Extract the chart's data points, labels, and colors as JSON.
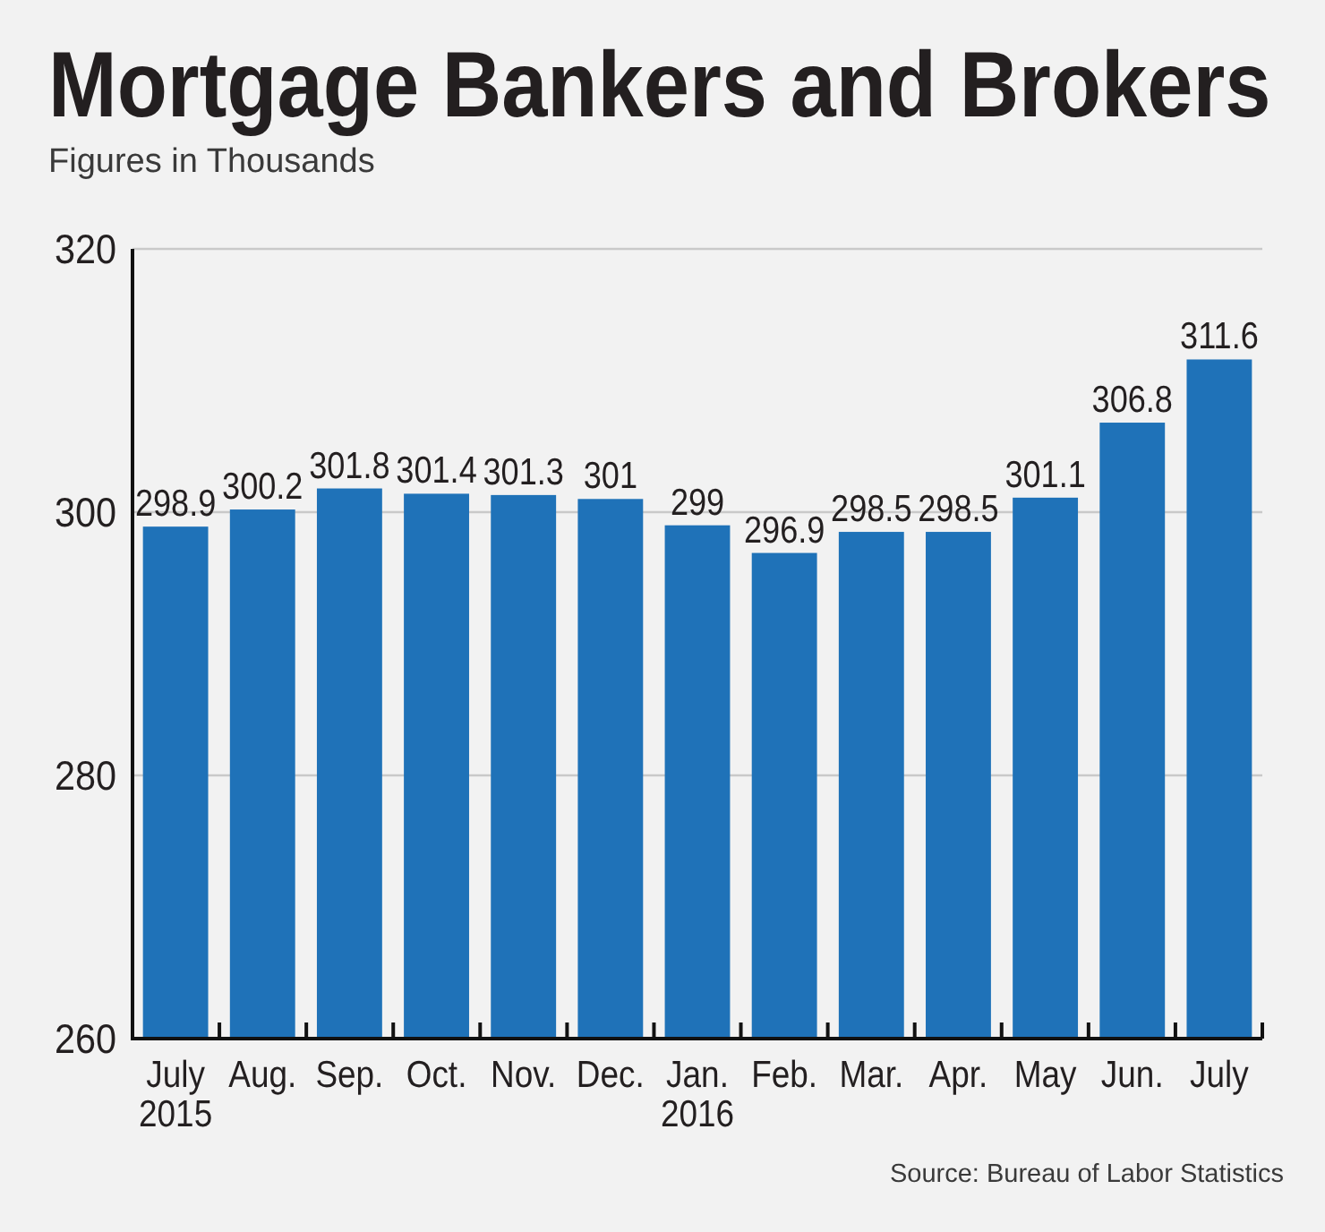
{
  "chart_data": {
    "type": "bar",
    "title": "Mortgage Bankers and Brokers",
    "subtitle": "Figures in Thousands",
    "categories": [
      "July\n2015",
      "Aug.",
      "Sep.",
      "Oct.",
      "Nov.",
      "Dec.",
      "Jan.\n2016",
      "Feb.",
      "Mar.",
      "Apr.",
      "May",
      "Jun.",
      "July"
    ],
    "values": [
      298.9,
      300.2,
      301.8,
      301.4,
      301.3,
      301,
      299,
      296.9,
      298.5,
      298.5,
      301.1,
      306.8,
      311.6
    ],
    "color": "#1f72b8",
    "ylim": [
      260,
      320
    ],
    "yticks": [
      260,
      280,
      300,
      320
    ],
    "grid": "y",
    "data_labels": true,
    "annotations": [
      "Source: Bureau of Labor Statistics"
    ]
  }
}
